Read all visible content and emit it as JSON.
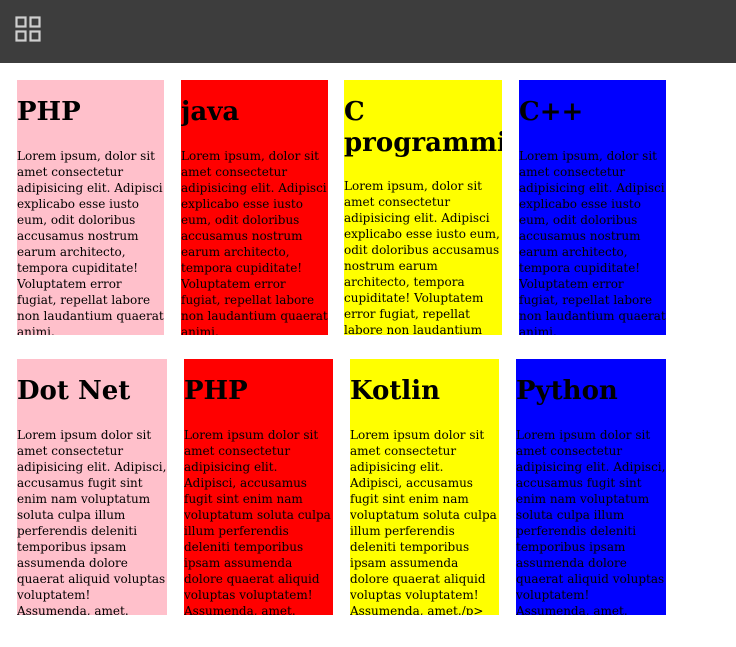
{
  "header": {
    "menu_icon": "grid-icon",
    "background": "#3d3d3d"
  },
  "colors": {
    "pink": "#ffc0cb",
    "red": "#ff0000",
    "yellow": "#ffff00",
    "blue": "#0000ff"
  },
  "cards": [
    {
      "title": "PHP",
      "body": "Lorem ipsum, dolor sit amet consectetur adipisicing elit. Adipisci explicabo esse iusto eum, odit doloribus accusamus nostrum earum architecto, tempora cupiditate! Voluptatem error fugiat, repellat labore non laudantium quaerat animi."
    },
    {
      "title": "java",
      "body": "Lorem ipsum, dolor sit amet consectetur adipisicing elit. Adipisci explicabo esse iusto eum, odit doloribus accusamus nostrum earum architecto, tempora cupiditate! Voluptatem error fugiat, repellat labore non laudantium quaerat animi."
    },
    {
      "title": "C programming",
      "body": "Lorem ipsum, dolor sit amet consectetur adipisicing elit. Adipisci explicabo esse iusto eum, odit doloribus accusamus nostrum earum architecto, tempora cupiditate! Voluptatem error fugiat, repellat labore non laudantium quaerat animi."
    },
    {
      "title": "C++",
      "body": "Lorem ipsum, dolor sit amet consectetur adipisicing elit. Adipisci explicabo esse iusto eum, odit doloribus accusamus nostrum earum architecto, tempora cupiditate! Voluptatem error fugiat, repellat labore non laudantium quaerat animi."
    },
    {
      "title": "Dot Net",
      "body": "Lorem ipsum dolor sit amet consectetur adipisicing elit. Adipisci, accusamus fugit sint enim nam voluptatum soluta culpa illum perferendis deleniti temporibus ipsam assumenda dolore quaerat aliquid voluptas voluptatem! Assumenda, amet."
    },
    {
      "title": "PHP",
      "body": "Lorem ipsum dolor sit amet consectetur adipisicing elit. Adipisci, accusamus fugit sint enim nam voluptatum soluta culpa illum perferendis deleniti temporibus ipsam assumenda dolore quaerat aliquid voluptas voluptatem! Assumenda, amet."
    },
    {
      "title": "Kotlin",
      "body": "Lorem ipsum dolor sit amet consectetur adipisicing elit. Adipisci, accusamus fugit sint enim nam voluptatum soluta culpa illum perferendis deleniti temporibus ipsam assumenda dolore quaerat aliquid voluptas voluptatem! Assumenda, amet./p>"
    },
    {
      "title": "Python",
      "body": "Lorem ipsum dolor sit amet consectetur adipisicing elit. Adipisci, accusamus fugit sint enim nam voluptatum soluta culpa illum perferendis deleniti temporibus ipsam assumenda dolore quaerat aliquid voluptas voluptatem! Assumenda, amet."
    }
  ]
}
